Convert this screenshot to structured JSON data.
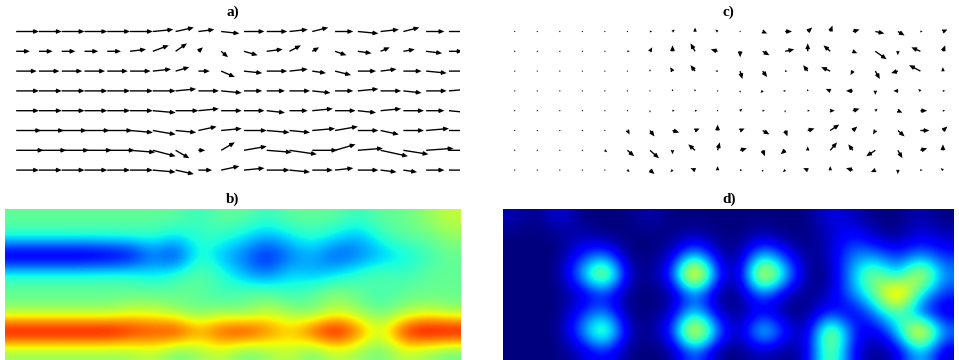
{
  "chart_data": [
    {
      "type": "quiver",
      "title": "a)",
      "color": "#000000",
      "tick_labels": false,
      "u": [
        [
          1.0,
          1.0,
          1.0,
          1.0,
          1.0,
          1.0,
          0.9,
          0.8,
          0.7,
          0.8,
          0.9,
          0.9,
          0.8,
          0.7,
          0.8,
          0.9,
          0.8,
          0.7,
          0.8,
          0.9
        ],
        [
          0.6,
          0.6,
          0.6,
          0.6,
          0.6,
          0.7,
          0.7,
          0.5,
          0.2,
          0.3,
          0.6,
          0.7,
          0.5,
          0.3,
          0.5,
          0.6,
          0.4,
          0.5,
          0.7,
          0.6
        ],
        [
          0.9,
          0.9,
          0.9,
          0.9,
          0.9,
          0.9,
          0.8,
          0.6,
          0.5,
          0.6,
          0.8,
          0.9,
          0.8,
          0.6,
          0.7,
          0.8,
          0.7,
          0.8,
          0.9,
          0.8
        ],
        [
          1.0,
          1.0,
          1.0,
          1.0,
          1.0,
          1.0,
          1.0,
          0.9,
          0.9,
          0.9,
          0.8,
          0.8,
          0.9,
          0.8,
          0.8,
          0.9,
          0.9,
          0.8,
          0.9,
          1.0
        ],
        [
          1.0,
          1.0,
          1.0,
          1.0,
          1.0,
          1.0,
          1.0,
          1.0,
          0.9,
          0.9,
          0.9,
          0.8,
          0.8,
          0.9,
          0.9,
          0.8,
          0.9,
          0.9,
          0.8,
          0.9
        ],
        [
          1.1,
          1.1,
          1.1,
          1.1,
          1.1,
          1.0,
          1.0,
          0.9,
          0.8,
          0.9,
          1.0,
          1.0,
          0.9,
          1.0,
          1.0,
          0.9,
          0.8,
          0.9,
          1.0,
          1.0
        ],
        [
          1.2,
          1.2,
          1.2,
          1.2,
          1.2,
          1.1,
          1.0,
          0.6,
          0.3,
          0.6,
          1.0,
          1.1,
          1.2,
          1.1,
          0.9,
          1.1,
          1.2,
          1.1,
          1.2,
          1.2
        ],
        [
          1.0,
          1.0,
          1.0,
          1.0,
          1.0,
          1.0,
          1.0,
          0.8,
          0.6,
          0.8,
          0.9,
          1.0,
          0.9,
          0.9,
          0.8,
          0.9,
          0.7,
          0.6,
          0.8,
          0.9
        ]
      ],
      "v": [
        [
          0,
          0,
          0,
          0,
          0,
          0,
          0.1,
          0.2,
          0.1,
          -0.1,
          0,
          0,
          0.1,
          0.2,
          0,
          -0.1,
          0.1,
          0.2,
          0,
          0
        ],
        [
          0,
          0,
          0,
          0,
          0,
          0.1,
          0.3,
          0.4,
          0.2,
          -0.3,
          -0.2,
          0.1,
          0.3,
          0.2,
          -0.2,
          -0.1,
          0.2,
          0.1,
          -0.1,
          0
        ],
        [
          0,
          0,
          0,
          0,
          0,
          0,
          0.1,
          0.2,
          0,
          -0.3,
          -0.1,
          0,
          0.1,
          -0.1,
          -0.2,
          0,
          0.1,
          0,
          -0.1,
          0
        ],
        [
          0,
          0,
          0,
          0,
          0,
          0,
          0,
          0.1,
          0,
          -0.1,
          0,
          0,
          0,
          -0.1,
          0,
          0.1,
          0,
          -0.1,
          0,
          0.1
        ],
        [
          0,
          0,
          0,
          0,
          0,
          0,
          -0.1,
          0,
          0.1,
          0,
          0,
          -0.1,
          0,
          0.1,
          0,
          -0.1,
          0.1,
          0,
          0,
          -0.1
        ],
        [
          0,
          0,
          0,
          0,
          0,
          -0.1,
          -0.2,
          -0.1,
          0.2,
          0.1,
          0,
          -0.1,
          -0.1,
          0.1,
          0.2,
          0,
          -0.2,
          0,
          0.1,
          0
        ],
        [
          0,
          0,
          0,
          0,
          0,
          -0.1,
          -0.3,
          -0.4,
          0,
          0.4,
          0.2,
          -0.1,
          -0.2,
          0,
          0.3,
          0.1,
          -0.3,
          -0.2,
          0.1,
          0
        ],
        [
          0,
          0,
          0,
          0,
          0,
          0,
          -0.1,
          -0.2,
          0,
          0.2,
          0.1,
          0,
          -0.1,
          0,
          0.1,
          0,
          -0.1,
          -0.1,
          0,
          0
        ]
      ]
    },
    {
      "type": "heatmap",
      "title": "b)",
      "tick_labels": false,
      "cells": [
        [
          0.5,
          0.5,
          0.5,
          0.5,
          0.5,
          0.5,
          0.5,
          0.5,
          0.45,
          0.5,
          0.5,
          0.45,
          0.5,
          0.5,
          0.5,
          0.45,
          0.5,
          0.5,
          0.55,
          0.6
        ],
        [
          0.45,
          0.45,
          0.45,
          0.45,
          0.45,
          0.45,
          0.45,
          0.4,
          0.45,
          0.45,
          0.4,
          0.35,
          0.4,
          0.45,
          0.4,
          0.35,
          0.45,
          0.5,
          0.5,
          0.55
        ],
        [
          0.1,
          0.1,
          0.1,
          0.1,
          0.12,
          0.15,
          0.3,
          0.2,
          0.45,
          0.35,
          0.3,
          0.2,
          0.3,
          0.35,
          0.25,
          0.3,
          0.35,
          0.4,
          0.45,
          0.5
        ],
        [
          0.45,
          0.45,
          0.45,
          0.45,
          0.45,
          0.45,
          0.4,
          0.45,
          0.5,
          0.45,
          0.35,
          0.3,
          0.4,
          0.35,
          0.4,
          0.45,
          0.5,
          0.45,
          0.5,
          0.5
        ],
        [
          0.5,
          0.5,
          0.5,
          0.5,
          0.5,
          0.5,
          0.5,
          0.5,
          0.5,
          0.45,
          0.5,
          0.5,
          0.45,
          0.5,
          0.55,
          0.5,
          0.45,
          0.5,
          0.5,
          0.5
        ],
        [
          0.55,
          0.55,
          0.55,
          0.55,
          0.55,
          0.6,
          0.6,
          0.55,
          0.5,
          0.55,
          0.5,
          0.6,
          0.55,
          0.5,
          0.6,
          0.55,
          0.5,
          0.55,
          0.6,
          0.55
        ],
        [
          0.95,
          0.95,
          0.95,
          0.95,
          0.95,
          0.9,
          0.85,
          0.9,
          0.75,
          0.85,
          0.9,
          0.8,
          0.7,
          0.85,
          0.95,
          0.8,
          0.6,
          0.9,
          0.95,
          0.95
        ],
        [
          0.55,
          0.55,
          0.55,
          0.55,
          0.55,
          0.55,
          0.6,
          0.5,
          0.55,
          0.6,
          0.5,
          0.55,
          0.6,
          0.5,
          0.6,
          0.55,
          0.5,
          0.6,
          0.55,
          0.5
        ]
      ]
    },
    {
      "type": "quiver",
      "title": "c)",
      "color": "#000000",
      "tick_labels": false,
      "u": [
        [
          0,
          0,
          0,
          0,
          0,
          0,
          0.1,
          0.1,
          0,
          -0.1,
          0,
          0.2,
          0.3,
          0.2,
          0.1,
          0.3,
          0.4,
          0.3,
          0.1,
          0.2
        ],
        [
          0,
          0,
          0,
          0,
          0,
          0.1,
          0.1,
          0,
          -0.2,
          -0.3,
          0,
          0.3,
          0.4,
          0,
          -0.3,
          0.2,
          0.5,
          0,
          -0.4,
          0.1
        ],
        [
          0,
          0,
          0,
          0,
          0,
          0,
          0,
          -0.1,
          -0.2,
          -0.1,
          0.1,
          0.2,
          0.1,
          -0.2,
          -0.4,
          -0.1,
          0.2,
          -0.3,
          -0.5,
          0
        ],
        [
          0,
          0,
          0,
          0,
          0,
          0,
          0,
          0,
          0,
          0,
          0,
          -0.1,
          -0.1,
          0,
          -0.2,
          -0.3,
          0,
          -0.2,
          -0.1,
          0.1
        ],
        [
          0,
          0,
          0,
          0,
          0,
          0,
          0,
          0.1,
          0.1,
          0,
          0.1,
          0.1,
          0,
          0.1,
          0.2,
          0.3,
          0.1,
          0.2,
          0.3,
          0.1
        ],
        [
          0,
          0,
          0,
          0,
          0,
          0.1,
          0.2,
          0.3,
          0.2,
          0,
          0.2,
          0.3,
          0.1,
          0.3,
          0.4,
          0.2,
          -0.1,
          0.3,
          0.4,
          0.2
        ],
        [
          0,
          0,
          0,
          0,
          0.1,
          0.3,
          0.4,
          0,
          -0.3,
          0.1,
          0.3,
          0.1,
          -0.2,
          0,
          0.3,
          -0.2,
          -0.4,
          0.2,
          0.3,
          0
        ],
        [
          0,
          0,
          0,
          0,
          0,
          0.1,
          0.2,
          -0.1,
          -0.2,
          0,
          0.1,
          0,
          -0.1,
          -0.2,
          0,
          -0.3,
          -0.2,
          0,
          0.1,
          -0.1
        ]
      ],
      "v": [
        [
          0,
          0,
          0,
          0,
          0,
          0,
          0,
          0.1,
          0.2,
          0.1,
          0,
          -0.1,
          0,
          0.2,
          0.3,
          0.1,
          -0.1,
          -0.2,
          0,
          0.1
        ],
        [
          0,
          0,
          0,
          0,
          0,
          0,
          0.2,
          0.3,
          0.4,
          0.1,
          -0.3,
          -0.2,
          0.1,
          0.4,
          0.3,
          -0.1,
          -0.4,
          -0.2,
          0.2,
          0.3
        ],
        [
          0,
          0,
          0,
          0,
          0,
          0,
          0.1,
          0.2,
          0.3,
          0,
          -0.4,
          -0.3,
          0,
          0.3,
          0.2,
          -0.2,
          -0.4,
          -0.1,
          0.3,
          0.2
        ],
        [
          0,
          0,
          0,
          0,
          0,
          0,
          0,
          0.1,
          0.1,
          0,
          -0.1,
          -0.1,
          0,
          0.1,
          0.1,
          0,
          -0.2,
          0,
          0.1,
          0
        ],
        [
          0,
          0,
          0,
          0,
          0,
          0,
          -0.1,
          0,
          0,
          0,
          0.1,
          0,
          -0.1,
          0,
          0,
          0.1,
          0.1,
          -0.1,
          0,
          0
        ],
        [
          0,
          0,
          0,
          0,
          0,
          -0.2,
          -0.3,
          -0.1,
          0.1,
          0.3,
          0.1,
          -0.2,
          -0.3,
          0.1,
          0.3,
          0.2,
          -0.2,
          -0.3,
          0,
          0.2
        ],
        [
          0,
          0,
          0,
          0,
          -0.1,
          -0.3,
          -0.4,
          -0.2,
          0.3,
          0.4,
          0.1,
          -0.3,
          -0.2,
          0.2,
          0.4,
          0.3,
          -0.3,
          -0.4,
          0.1,
          0.3
        ],
        [
          0,
          0,
          0,
          0,
          0,
          -0.1,
          -0.2,
          -0.1,
          0.1,
          0.2,
          0,
          -0.1,
          -0.1,
          0.1,
          0.2,
          0.1,
          -0.1,
          -0.2,
          0,
          0.1
        ]
      ]
    },
    {
      "type": "heatmap",
      "title": "d)",
      "tick_labels": false,
      "cells": [
        [
          0.1,
          0.05,
          0.15,
          0.05,
          0.05,
          0.05,
          0.1,
          0.05,
          0.05,
          0.05,
          0.05,
          0.05,
          0.05,
          0.05,
          0.15,
          0.1,
          0.05,
          0.05,
          0.1,
          0.05
        ],
        [
          0.05,
          0.05,
          0.05,
          0.1,
          0.05,
          0.05,
          0.05,
          0.05,
          0.1,
          0.05,
          0.05,
          0.1,
          0.05,
          0.05,
          0.1,
          0.2,
          0.1,
          0.05,
          0.15,
          0.1
        ],
        [
          0.05,
          0.05,
          0.05,
          0.2,
          0.3,
          0.05,
          0.05,
          0.1,
          0.4,
          0.1,
          0.05,
          0.4,
          0.2,
          0.05,
          0.1,
          0.3,
          0.3,
          0.2,
          0.3,
          0.2
        ],
        [
          0.05,
          0.05,
          0.05,
          0.35,
          0.75,
          0.1,
          0.05,
          0.2,
          1.0,
          0.2,
          0.05,
          0.85,
          0.4,
          0.05,
          0.05,
          0.35,
          0.6,
          0.3,
          0.75,
          0.3
        ],
        [
          0.05,
          0.05,
          0.05,
          0.1,
          0.2,
          0.05,
          0.05,
          0.05,
          0.3,
          0.05,
          0.05,
          0.3,
          0.1,
          0.05,
          0.1,
          0.3,
          0.5,
          0.9,
          0.4,
          0.2
        ],
        [
          0.05,
          0.05,
          0.05,
          0.2,
          0.3,
          0.05,
          0.05,
          0.1,
          0.4,
          0.1,
          0.05,
          0.15,
          0.05,
          0.05,
          0.2,
          0.1,
          0.3,
          0.5,
          0.2,
          0.1
        ],
        [
          0.05,
          0.05,
          0.05,
          0.3,
          0.65,
          0.1,
          0.05,
          0.2,
          0.9,
          0.3,
          0.05,
          0.5,
          0.2,
          0.05,
          0.7,
          0.2,
          0.1,
          0.35,
          0.9,
          0.3
        ],
        [
          0.05,
          0.05,
          0.05,
          0.1,
          0.2,
          0.05,
          0.05,
          0.05,
          0.3,
          0.05,
          0.05,
          0.1,
          0.05,
          0.1,
          0.6,
          0.15,
          0.05,
          0.1,
          0.4,
          0.1
        ]
      ]
    }
  ]
}
